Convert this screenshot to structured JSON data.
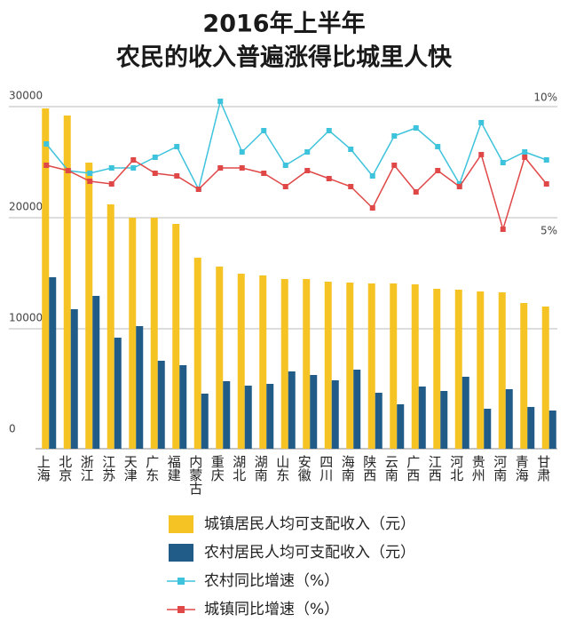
{
  "chart_data": {
    "type": "bar",
    "title": "2016年上半年",
    "subtitle": "农民的收入普遍涨得比城里人快",
    "categories": [
      "上海",
      "北京",
      "浙江",
      "江苏",
      "天津",
      "广东",
      "福建",
      "内蒙古",
      "重庆",
      "湖北",
      "湖南",
      "山东",
      "安徽",
      "四川",
      "海南",
      "陕西",
      "云南",
      "广西",
      "江西",
      "河北",
      "贵州",
      "河南",
      "青海",
      "甘肃"
    ],
    "series": [
      {
        "name": "城镇居民人均可支配收入（元）",
        "type": "bar",
        "color": "#f6c324",
        "values": [
          29840,
          29200,
          24960,
          21200,
          20000,
          20000,
          19440,
          16400,
          15600,
          14960,
          14800,
          14480,
          14480,
          14240,
          14160,
          14080,
          14080,
          14000,
          13600,
          13520,
          13360,
          13280,
          12320,
          12000
        ]
      },
      {
        "name": "农村居民人均可支配收入（元）",
        "type": "bar",
        "color": "#215b87",
        "values": [
          14640,
          11760,
          12960,
          9200,
          10240,
          7120,
          6720,
          4160,
          5280,
          4880,
          5040,
          6160,
          5840,
          5360,
          6320,
          4240,
          3200,
          4800,
          4400,
          5680,
          2800,
          4560,
          2960,
          2640
        ]
      },
      {
        "name": "农村同比增速（%）",
        "type": "line",
        "axis": "y2",
        "color": "#3ec3dc",
        "values": [
          8.6,
          7.6,
          7.5,
          7.7,
          7.7,
          8.1,
          8.5,
          6.9,
          10.2,
          8.3,
          9.1,
          7.8,
          8.3,
          9.1,
          8.4,
          7.4,
          8.9,
          9.2,
          8.5,
          7.1,
          9.4,
          7.9,
          8.3,
          8.0
        ]
      },
      {
        "name": "城镇同比增速（%）",
        "type": "line",
        "axis": "y2",
        "color": "#e04848",
        "values": [
          7.8,
          7.6,
          7.2,
          7.1,
          8.0,
          7.5,
          7.4,
          6.9,
          7.7,
          7.7,
          7.5,
          7.0,
          7.6,
          7.3,
          7.0,
          6.2,
          7.8,
          6.8,
          7.6,
          7.0,
          8.2,
          5.4,
          8.1,
          7.1
        ]
      }
    ],
    "ylim": [
      0,
      30000
    ],
    "yticks": [
      0,
      10000,
      20000,
      30000
    ],
    "y2lim": [
      -2.5,
      10
    ],
    "y2ticks": [
      {
        "value": 5,
        "label": "5%"
      },
      {
        "value": 10,
        "label": "10%"
      }
    ],
    "grid": true
  }
}
